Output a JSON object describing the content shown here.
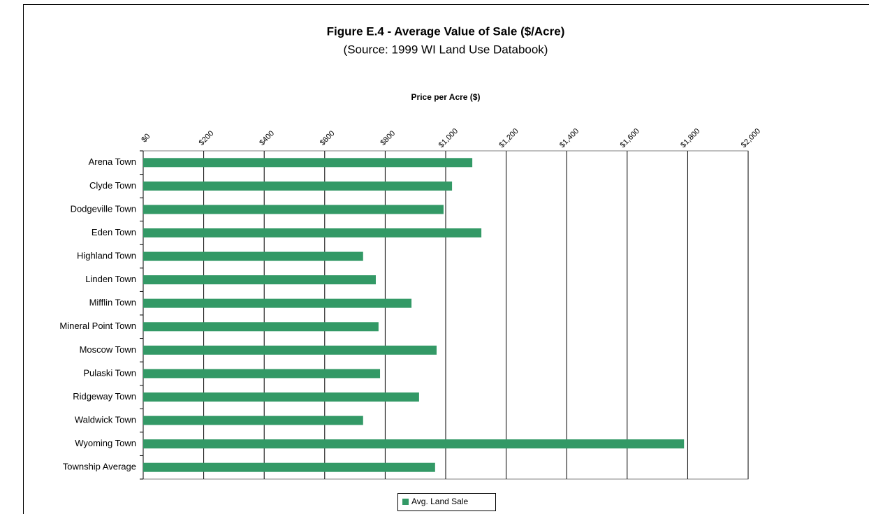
{
  "chart_data": {
    "type": "bar",
    "orientation": "horizontal",
    "title": "Figure E.4 - Average Value of Sale  ($/Acre)",
    "subtitle": "(Source: 1999 WI Land Use Databook)",
    "x_label": "Price per Acre ($)",
    "categories": [
      "Arena Town",
      "Clyde Town",
      "Dodgeville Town",
      "Eden Town",
      "Highland Town",
      "Linden Town",
      "Mifflin Town",
      "Mineral Point Town",
      "Moscow Town",
      "Pulaski Town",
      "Ridgeway Town",
      "Waldwick Town",
      "Wyoming Town",
      "Township Average"
    ],
    "series": [
      {
        "name": "Avg. Land Sale",
        "color": "#339966",
        "values": [
          1088,
          1021,
          993,
          1118,
          727,
          769,
          887,
          778,
          970,
          783,
          912,
          727,
          1788,
          965
        ]
      }
    ],
    "xlim": [
      0,
      2000
    ],
    "xticks": [
      {
        "value": 0,
        "label": "$0"
      },
      {
        "value": 200,
        "label": "$200"
      },
      {
        "value": 400,
        "label": "$400"
      },
      {
        "value": 600,
        "label": "$600"
      },
      {
        "value": 800,
        "label": "$800"
      },
      {
        "value": 1000,
        "label": "$1,000"
      },
      {
        "value": 1200,
        "label": "$1,200"
      },
      {
        "value": 1400,
        "label": "$1,400"
      },
      {
        "value": 1600,
        "label": "$1,600"
      },
      {
        "value": 1800,
        "label": "$1,800"
      },
      {
        "value": 2000,
        "label": "$2,000"
      }
    ],
    "grid": true,
    "legend": "bottom"
  }
}
